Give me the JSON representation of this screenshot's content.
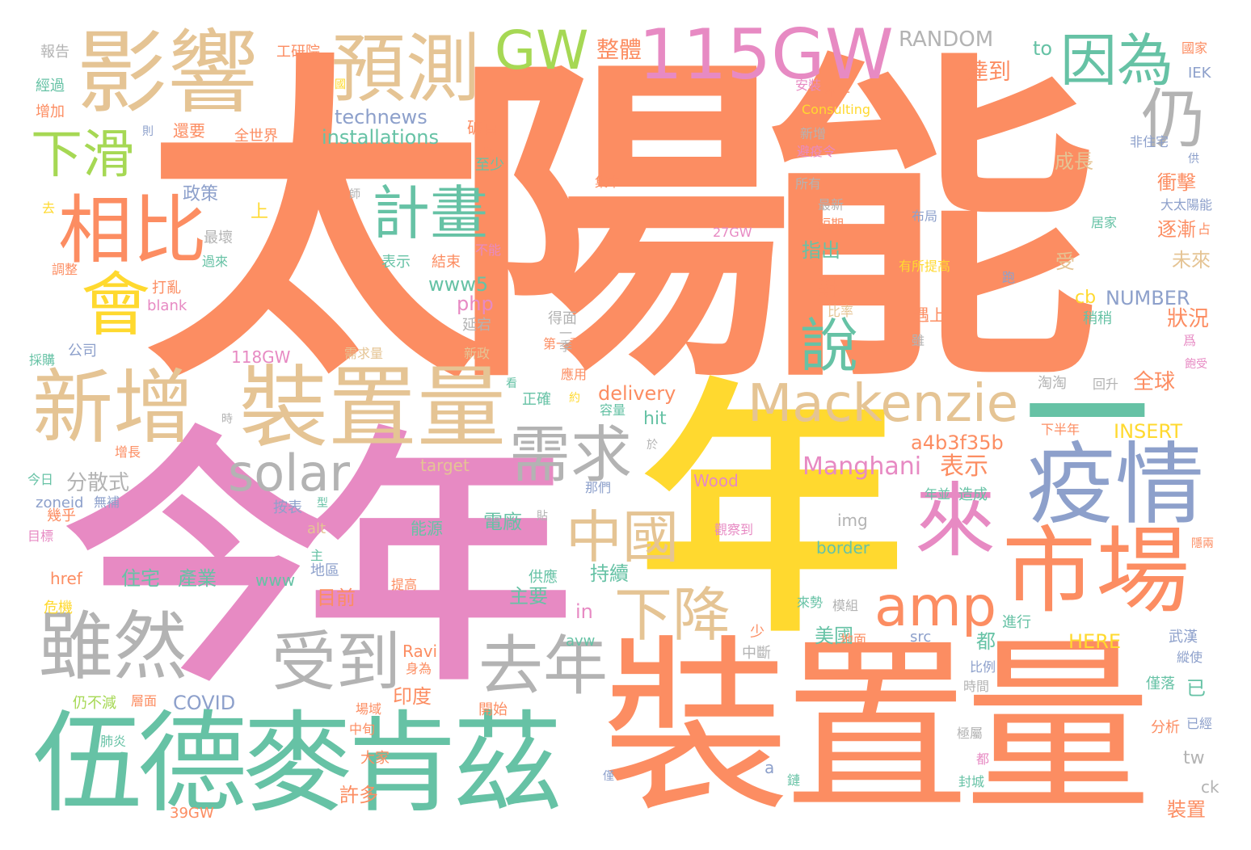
{
  "palette": {
    "orange": "#FC8D62",
    "pink": "#E78AC3",
    "yellow": "#FFD92F",
    "green": "#66C2A5",
    "blue": "#8DA0CB",
    "tan": "#E5C494",
    "gray": "#B3B3B3",
    "lime": "#A6D854"
  },
  "words": [
    {
      "text": "太陽能",
      "color": "orange"
    },
    {
      "text": "今年",
      "color": "pink"
    },
    {
      "text": "年",
      "color": "yellow"
    },
    {
      "text": "裝置量",
      "color": "orange"
    },
    {
      "text": "伍德麥肯茲",
      "color": "green"
    },
    {
      "text": "影響",
      "color": "tan"
    },
    {
      "text": "預測",
      "color": "tan"
    },
    {
      "text": "115GW",
      "color": "pink"
    },
    {
      "text": "GW",
      "color": "lime"
    },
    {
      "text": "因為",
      "color": "green"
    },
    {
      "text": "仍",
      "color": "gray"
    },
    {
      "text": "下滑",
      "color": "lime"
    },
    {
      "text": "相比",
      "color": "orange"
    },
    {
      "text": "會",
      "color": "yellow"
    },
    {
      "text": "計畫",
      "color": "green"
    },
    {
      "text": "新增",
      "color": "tan"
    },
    {
      "text": "裝置量",
      "color": "tan"
    },
    {
      "text": "solar",
      "color": "gray"
    },
    {
      "text": "說",
      "color": "green"
    },
    {
      "text": "Mackenzie",
      "color": "tan"
    },
    {
      "text": "一",
      "color": "green"
    },
    {
      "text": "需求",
      "color": "gray"
    },
    {
      "text": "疫情",
      "color": "blue"
    },
    {
      "text": "來",
      "color": "pink"
    },
    {
      "text": "市場",
      "color": "orange"
    },
    {
      "text": "中國",
      "color": "tan"
    },
    {
      "text": "amp",
      "color": "orange"
    },
    {
      "text": "雖然",
      "color": "gray"
    },
    {
      "text": "受到",
      "color": "gray"
    },
    {
      "text": "去年",
      "color": "gray"
    },
    {
      "text": "下降",
      "color": "tan"
    },
    {
      "text": "Manghani",
      "color": "pink"
    },
    {
      "text": "表示",
      "color": "orange"
    },
    {
      "text": "a4b3f35b",
      "color": "orange"
    },
    {
      "text": "分散式",
      "color": "gray"
    },
    {
      "text": "RANDOM",
      "color": "gray"
    },
    {
      "text": "整體",
      "color": "orange"
    },
    {
      "text": "to",
      "color": "green"
    },
    {
      "text": "達到",
      "color": "orange"
    },
    {
      "text": "technews",
      "color": "blue"
    },
    {
      "text": "installations",
      "color": "green"
    },
    {
      "text": "delivery",
      "color": "orange"
    },
    {
      "text": "hit",
      "color": "green"
    },
    {
      "text": "www5",
      "color": "green"
    },
    {
      "text": "php",
      "color": "pink"
    },
    {
      "text": "cb",
      "color": "yellow"
    },
    {
      "text": "NUMBER",
      "color": "blue"
    },
    {
      "text": "INSERT",
      "color": "yellow"
    },
    {
      "text": "HERE",
      "color": "yellow"
    },
    {
      "text": "COVID",
      "color": "blue"
    },
    {
      "text": "Ravi",
      "color": "orange"
    },
    {
      "text": "Wood",
      "color": "pink"
    },
    {
      "text": "Consulting",
      "color": "yellow"
    },
    {
      "text": "target",
      "color": "tan"
    },
    {
      "text": "118GW",
      "color": "pink"
    },
    {
      "text": "39GW",
      "color": "orange"
    },
    {
      "text": "27GW",
      "color": "pink"
    },
    {
      "text": "zoneid",
      "color": "blue"
    },
    {
      "text": "href",
      "color": "orange"
    },
    {
      "text": "www",
      "color": "green"
    },
    {
      "text": "in",
      "color": "pink"
    },
    {
      "text": "img",
      "color": "gray"
    },
    {
      "text": "border",
      "color": "green"
    },
    {
      "text": "alt",
      "color": "tan"
    },
    {
      "text": "src",
      "color": "blue"
    },
    {
      "text": "avw",
      "color": "green"
    },
    {
      "text": "tw",
      "color": "gray"
    },
    {
      "text": "ck",
      "color": "gray"
    },
    {
      "text": "IEK",
      "color": "blue"
    },
    {
      "text": "blank",
      "color": "pink"
    },
    {
      "text": "a",
      "color": "blue"
    },
    {
      "text": "n",
      "color": "orange"
    },
    {
      "text": "報告",
      "color": "gray"
    },
    {
      "text": "經過",
      "color": "green"
    },
    {
      "text": "增加",
      "color": "orange"
    },
    {
      "text": "工研院",
      "color": "orange"
    },
    {
      "text": "還要",
      "color": "orange"
    },
    {
      "text": "全世界",
      "color": "orange"
    },
    {
      "text": "政策",
      "color": "blue"
    },
    {
      "text": "成長",
      "color": "tan"
    },
    {
      "text": "衝擊",
      "color": "orange"
    },
    {
      "text": "逐漸",
      "color": "orange"
    },
    {
      "text": "未來",
      "color": "tan"
    },
    {
      "text": "狀況",
      "color": "orange"
    },
    {
      "text": "全球",
      "color": "orange"
    },
    {
      "text": "指出",
      "color": "green"
    },
    {
      "text": "電廠",
      "color": "green"
    },
    {
      "text": "持續",
      "color": "green"
    },
    {
      "text": "主要",
      "color": "green"
    },
    {
      "text": "住宅",
      "color": "green"
    },
    {
      "text": "產業",
      "color": "green"
    },
    {
      "text": "目前",
      "color": "orange"
    },
    {
      "text": "美國",
      "color": "green"
    },
    {
      "text": "印度",
      "color": "orange"
    },
    {
      "text": "許多",
      "color": "orange"
    },
    {
      "text": "裝置",
      "color": "orange"
    },
    {
      "text": "已",
      "color": "green"
    },
    {
      "text": "對",
      "color": "orange"
    },
    {
      "text": "都",
      "color": "green"
    },
    {
      "text": "上",
      "color": "yellow"
    },
    {
      "text": "受",
      "color": "tan"
    },
    {
      "text": "國家",
      "color": "orange"
    },
    {
      "text": "不平",
      "color": "orange"
    },
    {
      "text": "安裝",
      "color": "pink"
    },
    {
      "text": "新增",
      "color": "gray"
    },
    {
      "text": "所有",
      "color": "gray"
    },
    {
      "text": "最新",
      "color": "gray"
    },
    {
      "text": "短期",
      "color": "orange"
    },
    {
      "text": "布局",
      "color": "blue"
    },
    {
      "text": "有所提高",
      "color": "yellow"
    },
    {
      "text": "比率",
      "color": "tan"
    },
    {
      "text": "遇上",
      "color": "orange"
    },
    {
      "text": "稍稍",
      "color": "green"
    },
    {
      "text": "得面",
      "color": "gray"
    },
    {
      "text": "延宕",
      "color": "gray"
    },
    {
      "text": "新政",
      "color": "tan"
    },
    {
      "text": "需求量",
      "color": "tan"
    },
    {
      "text": "破百",
      "color": "orange"
    },
    {
      "text": "至少",
      "color": "green"
    },
    {
      "text": "集中",
      "color": "orange"
    },
    {
      "text": "結束",
      "color": "orange"
    },
    {
      "text": "表示",
      "color": "green"
    },
    {
      "text": "不能",
      "color": "pink"
    },
    {
      "text": "最壞",
      "color": "gray"
    },
    {
      "text": "過來",
      "color": "green"
    },
    {
      "text": "調整",
      "color": "orange"
    },
    {
      "text": "打亂",
      "color": "orange"
    },
    {
      "text": "公司",
      "color": "blue"
    },
    {
      "text": "採購",
      "color": "green"
    },
    {
      "text": "增長",
      "color": "orange"
    },
    {
      "text": "今日",
      "color": "green"
    },
    {
      "text": "幾乎",
      "color": "orange"
    },
    {
      "text": "無補",
      "color": "blue"
    },
    {
      "text": "目標",
      "color": "pink"
    },
    {
      "text": "危機",
      "color": "yellow"
    },
    {
      "text": "仍不減",
      "color": "lime"
    },
    {
      "text": "肺炎",
      "color": "green"
    },
    {
      "text": "層面",
      "color": "orange"
    },
    {
      "text": "開始",
      "color": "orange"
    },
    {
      "text": "大家",
      "color": "orange"
    },
    {
      "text": "能源",
      "color": "green"
    },
    {
      "text": "供應",
      "color": "green"
    },
    {
      "text": "提高",
      "color": "orange"
    },
    {
      "text": "正確",
      "color": "green"
    },
    {
      "text": "容量",
      "color": "green"
    },
    {
      "text": "應用",
      "color": "orange"
    },
    {
      "text": "那們",
      "color": "blue"
    },
    {
      "text": "按表",
      "color": "blue"
    },
    {
      "text": "地區",
      "color": "blue"
    },
    {
      "text": "觀察到",
      "color": "pink"
    },
    {
      "text": "造成",
      "color": "green"
    },
    {
      "text": "來勢",
      "color": "green"
    },
    {
      "text": "模組",
      "color": "gray"
    },
    {
      "text": "進行",
      "color": "green"
    },
    {
      "text": "中斷",
      "color": "gray"
    },
    {
      "text": "比例",
      "color": "blue"
    },
    {
      "text": "時間",
      "color": "gray"
    },
    {
      "text": "極屬",
      "color": "gray"
    },
    {
      "text": "封城",
      "color": "green"
    },
    {
      "text": "分析",
      "color": "orange"
    },
    {
      "text": "已經",
      "color": "blue"
    },
    {
      "text": "僅落",
      "color": "green"
    },
    {
      "text": "武漢",
      "color": "blue"
    },
    {
      "text": "縱使",
      "color": "blue"
    },
    {
      "text": "下半年",
      "color": "orange"
    },
    {
      "text": "淘淘",
      "color": "gray"
    },
    {
      "text": "回升",
      "color": "gray"
    },
    {
      "text": "非住宅",
      "color": "blue"
    },
    {
      "text": "大太陽能",
      "color": "blue"
    },
    {
      "text": "居家",
      "color": "green"
    },
    {
      "text": "避疫令",
      "color": "pink"
    },
    {
      "text": "身為",
      "color": "orange"
    },
    {
      "text": "地面",
      "color": "orange"
    },
    {
      "text": "中旬",
      "color": "orange"
    },
    {
      "text": "場域",
      "color": "orange"
    },
    {
      "text": "第一季",
      "color": "orange"
    },
    {
      "text": "年並",
      "color": "green"
    },
    {
      "text": "少",
      "color": "orange"
    },
    {
      "text": "一季",
      "color": "gray"
    },
    {
      "text": "爲",
      "color": "pink"
    },
    {
      "text": "雖",
      "color": "gray"
    },
    {
      "text": "占",
      "color": "orange"
    },
    {
      "text": "供",
      "color": "blue"
    },
    {
      "text": "則",
      "color": "blue"
    },
    {
      "text": "去",
      "color": "yellow"
    },
    {
      "text": "時",
      "color": "gray"
    },
    {
      "text": "於",
      "color": "gray"
    },
    {
      "text": "看",
      "color": "green"
    },
    {
      "text": "約",
      "color": "yellow"
    },
    {
      "text": "貼",
      "color": "gray"
    },
    {
      "text": "主",
      "color": "green"
    },
    {
      "text": "鏈",
      "color": "green"
    },
    {
      "text": "僅",
      "color": "blue"
    },
    {
      "text": "都",
      "color": "pink"
    },
    {
      "text": "型",
      "color": "green"
    },
    {
      "text": "師",
      "color": "gray"
    },
    {
      "text": "國",
      "color": "yellow"
    },
    {
      "text": "跑",
      "color": "blue"
    },
    {
      "text": "隱兩",
      "color": "orange"
    },
    {
      "text": "飽受",
      "color": "pink"
    }
  ]
}
